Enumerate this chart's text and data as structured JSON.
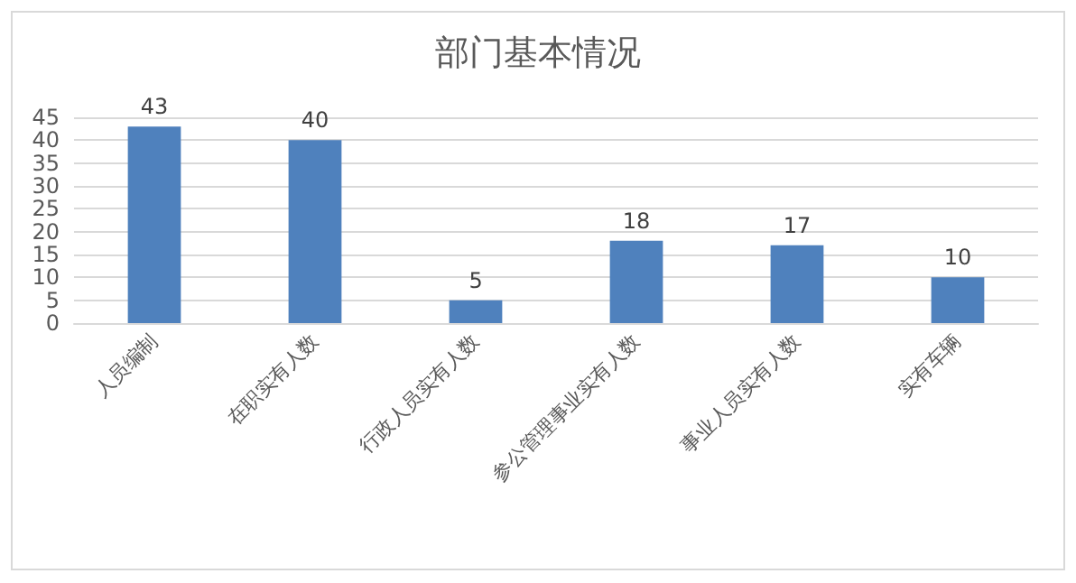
{
  "chart_data": {
    "type": "bar",
    "title": "部门基本情况",
    "categories": [
      "人员编制",
      "在职实有人数",
      "行政人员实有人数",
      "参公管理事业实有人数",
      "事业人员实有人数",
      "实有车辆"
    ],
    "values": [
      43,
      40,
      5,
      18,
      17,
      10
    ],
    "color": "#4f81bd",
    "ylim": [
      0,
      45
    ],
    "yticks": [
      0,
      5,
      10,
      15,
      20,
      25,
      30,
      35,
      40,
      45
    ],
    "grid": "y",
    "data_labels": true
  }
}
